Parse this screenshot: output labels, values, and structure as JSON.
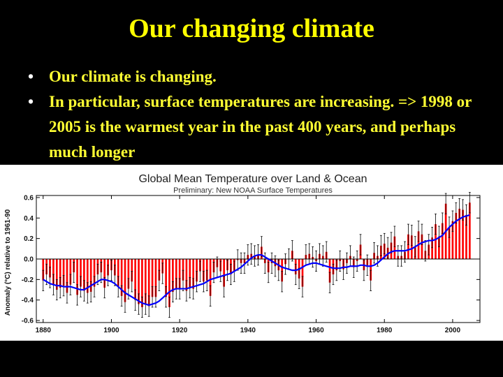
{
  "slide": {
    "title": "Our changing climate",
    "bullets": [
      "Our climate is changing.",
      "In particular, surface temperatures are increasing.  => 1998 or 2005 is the warmest year in the past 400 years, and perhaps much longer"
    ]
  },
  "colors": {
    "background": "#000000",
    "title": "#ffff00",
    "bullet_text": "#ffff33",
    "bars": "#ff0000",
    "smooth_line": "#0000ff",
    "error_bars": "#000000"
  },
  "chart_data": {
    "type": "bar",
    "title": "Global Mean Temperature over Land & Ocean",
    "subtitle": "Preliminary: New NOAA Surface Temperatures",
    "xlabel": "",
    "ylabel": "Anomaly (°C) relative to 1961-90",
    "xlim": [
      1878,
      2008
    ],
    "ylim": [
      -0.62,
      0.62
    ],
    "grid": false,
    "legend": "none",
    "x_ticks": [
      1880,
      1900,
      1920,
      1940,
      1960,
      1980,
      2000
    ],
    "y_ticks": [
      "0.6",
      "0.4",
      "0.2",
      "0.0",
      "-0.2",
      "-0.4",
      "-0.6"
    ],
    "y_tick_values": [
      0.6,
      0.4,
      0.2,
      0.0,
      -0.2,
      -0.4,
      -0.6
    ],
    "start_year": 1880,
    "anomalies": [
      -0.21,
      -0.15,
      -0.18,
      -0.25,
      -0.3,
      -0.28,
      -0.26,
      -0.33,
      -0.25,
      -0.13,
      -0.35,
      -0.27,
      -0.31,
      -0.33,
      -0.32,
      -0.27,
      -0.15,
      -0.13,
      -0.28,
      -0.16,
      -0.11,
      -0.16,
      -0.27,
      -0.36,
      -0.42,
      -0.29,
      -0.22,
      -0.4,
      -0.44,
      -0.47,
      -0.44,
      -0.46,
      -0.37,
      -0.37,
      -0.21,
      -0.14,
      -0.37,
      -0.47,
      -0.32,
      -0.29,
      -0.29,
      -0.21,
      -0.31,
      -0.28,
      -0.29,
      -0.22,
      -0.12,
      -0.22,
      -0.21,
      -0.36,
      -0.13,
      -0.08,
      -0.12,
      -0.27,
      -0.11,
      -0.15,
      -0.12,
      -0.01,
      -0.04,
      -0.04,
      0.04,
      0.05,
      0.03,
      0.04,
      0.12,
      -0.04,
      -0.13,
      -0.04,
      -0.07,
      -0.11,
      -0.22,
      -0.05,
      0.0,
      0.08,
      -0.15,
      -0.19,
      -0.27,
      0.04,
      0.05,
      0.02,
      -0.02,
      0.05,
      0.03,
      0.07,
      -0.23,
      -0.15,
      -0.11,
      -0.02,
      -0.1,
      -0.04,
      0.03,
      -0.08,
      -0.02,
      0.14,
      -0.11,
      -0.06,
      -0.21,
      0.06,
      0.03,
      0.13,
      0.15,
      0.11,
      0.16,
      0.22,
      0.03,
      0.03,
      0.07,
      0.24,
      0.23,
      0.12,
      0.27,
      0.24,
      0.08,
      0.14,
      0.21,
      0.34,
      0.22,
      0.35,
      0.54,
      0.31,
      0.37,
      0.45,
      0.49,
      0.48,
      0.43,
      0.55
    ],
    "smoothed": [
      -0.2,
      -0.22,
      -0.24,
      -0.25,
      -0.26,
      -0.26,
      -0.27,
      -0.27,
      -0.27,
      -0.28,
      -0.29,
      -0.3,
      -0.3,
      -0.28,
      -0.26,
      -0.24,
      -0.22,
      -0.2,
      -0.2,
      -0.21,
      -0.22,
      -0.24,
      -0.27,
      -0.3,
      -0.33,
      -0.35,
      -0.37,
      -0.39,
      -0.41,
      -0.43,
      -0.44,
      -0.45,
      -0.44,
      -0.43,
      -0.41,
      -0.38,
      -0.35,
      -0.32,
      -0.3,
      -0.29,
      -0.29,
      -0.29,
      -0.29,
      -0.28,
      -0.27,
      -0.26,
      -0.25,
      -0.24,
      -0.22,
      -0.2,
      -0.19,
      -0.18,
      -0.17,
      -0.16,
      -0.15,
      -0.14,
      -0.12,
      -0.1,
      -0.08,
      -0.05,
      -0.02,
      0.01,
      0.03,
      0.04,
      0.04,
      0.02,
      0.0,
      -0.02,
      -0.04,
      -0.06,
      -0.08,
      -0.09,
      -0.1,
      -0.11,
      -0.11,
      -0.1,
      -0.08,
      -0.06,
      -0.05,
      -0.04,
      -0.04,
      -0.05,
      -0.06,
      -0.07,
      -0.08,
      -0.09,
      -0.09,
      -0.09,
      -0.08,
      -0.08,
      -0.07,
      -0.07,
      -0.07,
      -0.06,
      -0.06,
      -0.07,
      -0.07,
      -0.06,
      -0.04,
      -0.01,
      0.02,
      0.05,
      0.07,
      0.08,
      0.08,
      0.08,
      0.08,
      0.09,
      0.1,
      0.12,
      0.14,
      0.16,
      0.17,
      0.18,
      0.18,
      0.19,
      0.21,
      0.23,
      0.27,
      0.31,
      0.34,
      0.37,
      0.39,
      0.41,
      0.42,
      0.43
    ],
    "error_margin": 0.1
  }
}
